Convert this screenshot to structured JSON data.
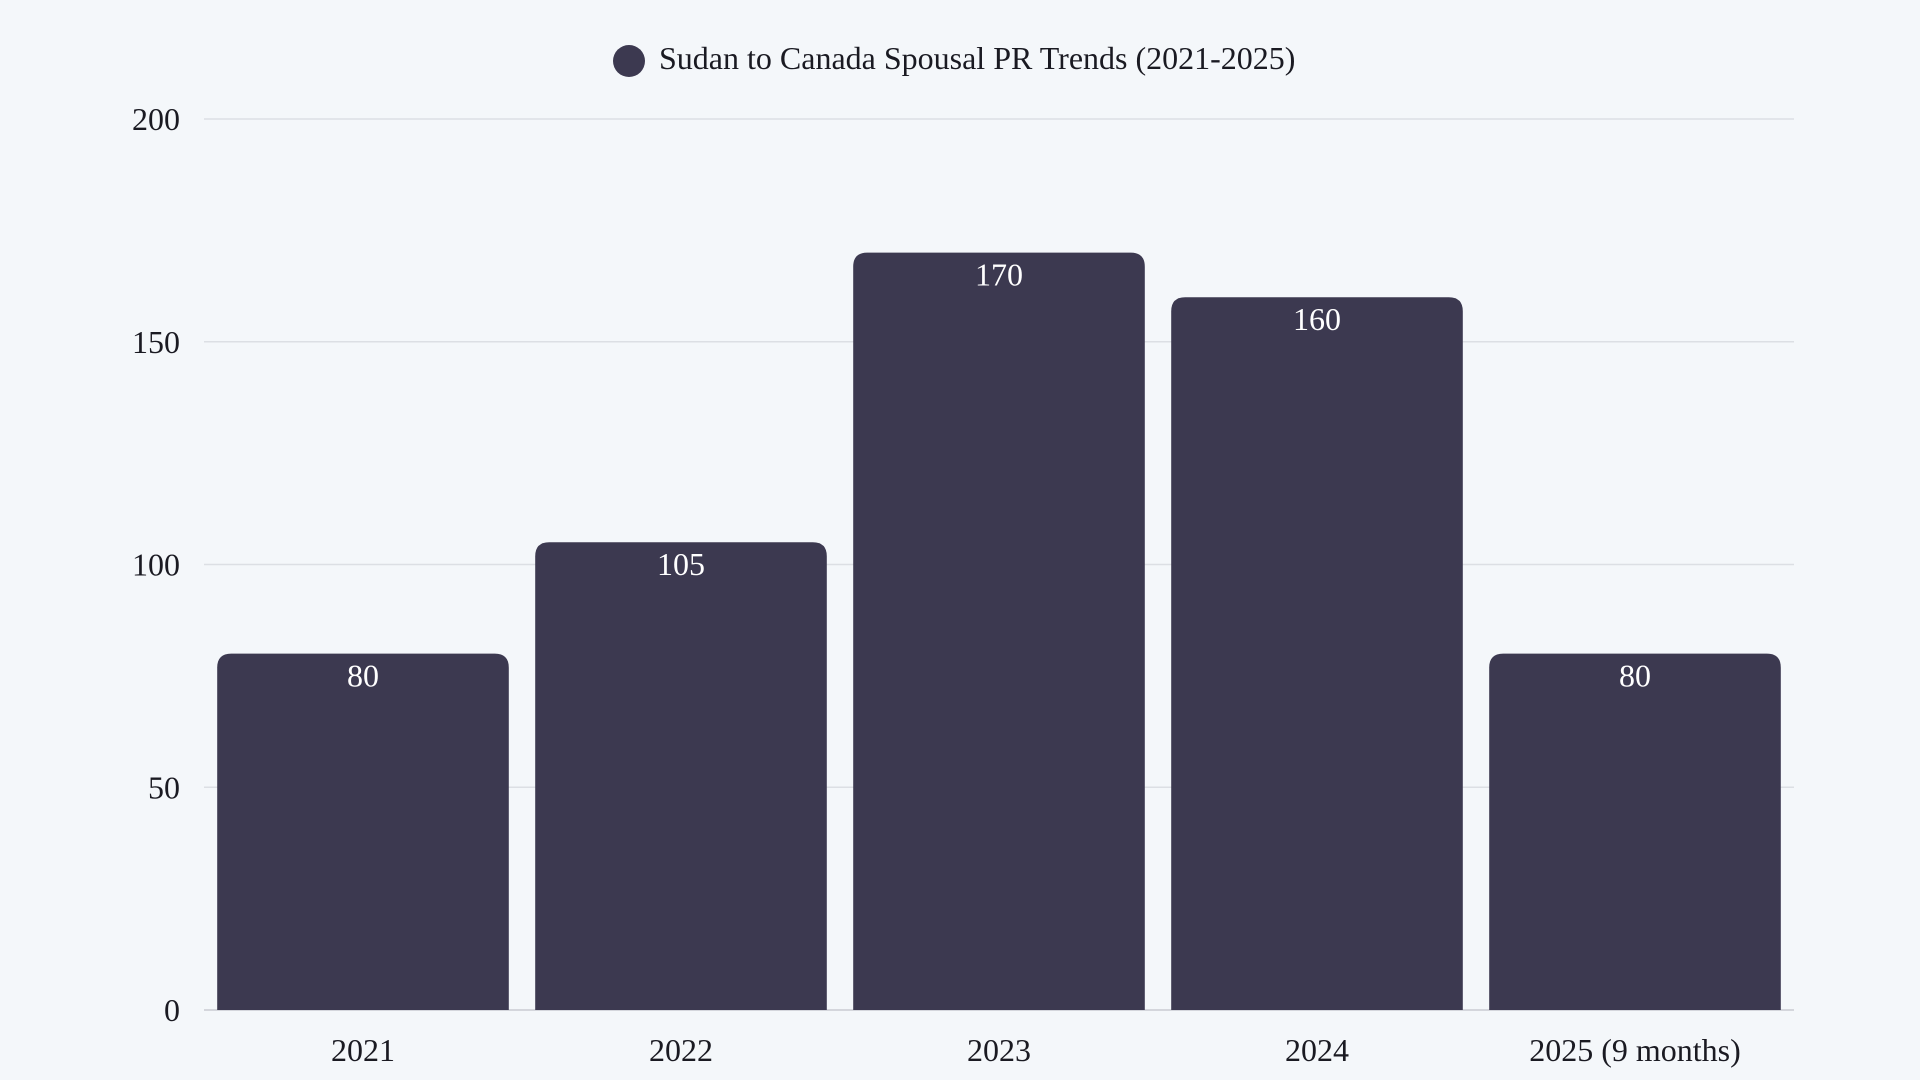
{
  "chart_data": {
    "type": "bar",
    "title": "",
    "legend": {
      "entries": [
        "Sudan to Canada Spousal PR Trends (2021-2025)"
      ],
      "placement": "top"
    },
    "categories": [
      "2021",
      "2022",
      "2023",
      "2024",
      "2025 (9 months)"
    ],
    "series": [
      {
        "name": "Sudan to Canada Spousal PR Trends (2021-2025)",
        "values": [
          80,
          105,
          170,
          160,
          80
        ],
        "color": "#3c3950"
      }
    ],
    "data_labels": [
      "80",
      "105",
      "170",
      "160",
      "80"
    ],
    "yticks": [
      "0",
      "50",
      "100",
      "150",
      "200"
    ],
    "ylim": [
      0,
      200
    ],
    "xlabel": "",
    "ylabel": "",
    "grid": true,
    "colors": {
      "background": "#f4f7fa",
      "bar": "#3c3950",
      "grid": "#dcdfe4"
    }
  }
}
